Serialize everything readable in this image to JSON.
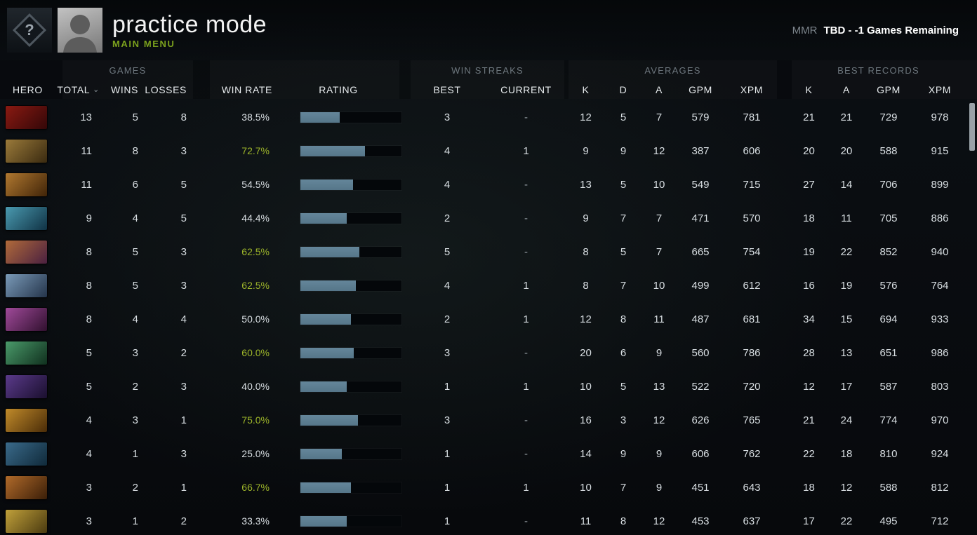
{
  "topbar": {
    "title": "practice mode",
    "subtitle": "MAIN MENU",
    "logo_glyph": "?",
    "mmr_label": "MMR",
    "mmr_value": "TBD - -1 Games Remaining"
  },
  "header": {
    "groups": {
      "games": "GAMES",
      "streaks": "WIN STREAKS",
      "averages": "AVERAGES",
      "records": "BEST RECORDS"
    },
    "cols": {
      "hero": "HERO",
      "total": "TOTAL",
      "wins": "WINS",
      "losses": "LOSSES",
      "win_rate": "WIN RATE",
      "rating": "RATING",
      "best": "BEST",
      "current": "CURRENT",
      "k": "K",
      "d": "D",
      "a": "A",
      "gpm": "GPM",
      "xpm": "XPM",
      "k2": "K",
      "a2": "A",
      "gpm2": "GPM",
      "xpm2": "XPM"
    },
    "sort_icon": "⌄"
  },
  "colors": {
    "accent_green": "#9db52a",
    "subtitle_green": "#7ca21d",
    "bar_fill": "#5b7d8e",
    "bar_track": "#04070a"
  },
  "rows": [
    {
      "total": "13",
      "wins": "5",
      "losses": "8",
      "win_rate": "38.5%",
      "rating_pct": 39,
      "best": "3",
      "current": "-",
      "avg_k": "12",
      "avg_d": "5",
      "avg_a": "7",
      "avg_gpm": "579",
      "avg_xpm": "781",
      "rec_k": "21",
      "rec_a": "21",
      "rec_gpm": "729",
      "rec_xpm": "978",
      "hero_colors": [
        "#8a1a12",
        "#330708"
      ]
    },
    {
      "total": "11",
      "wins": "8",
      "losses": "3",
      "win_rate": "72.7%",
      "rating_pct": 64,
      "best": "4",
      "current": "1",
      "avg_k": "9",
      "avg_d": "9",
      "avg_a": "12",
      "avg_gpm": "387",
      "avg_xpm": "606",
      "rec_k": "20",
      "rec_a": "20",
      "rec_gpm": "588",
      "rec_xpm": "915",
      "hero_colors": [
        "#9a7a3a",
        "#3a2a10"
      ]
    },
    {
      "total": "11",
      "wins": "6",
      "losses": "5",
      "win_rate": "54.5%",
      "rating_pct": 52,
      "best": "4",
      "current": "-",
      "avg_k": "13",
      "avg_d": "5",
      "avg_a": "10",
      "avg_gpm": "549",
      "avg_xpm": "715",
      "rec_k": "27",
      "rec_a": "14",
      "rec_gpm": "706",
      "rec_xpm": "899",
      "hero_colors": [
        "#b07830",
        "#402408"
      ]
    },
    {
      "total": "9",
      "wins": "4",
      "losses": "5",
      "win_rate": "44.4%",
      "rating_pct": 46,
      "best": "2",
      "current": "-",
      "avg_k": "9",
      "avg_d": "7",
      "avg_a": "7",
      "avg_gpm": "471",
      "avg_xpm": "570",
      "rec_k": "18",
      "rec_a": "11",
      "rec_gpm": "705",
      "rec_xpm": "886",
      "hero_colors": [
        "#4a9ab0",
        "#103244"
      ]
    },
    {
      "total": "8",
      "wins": "5",
      "losses": "3",
      "win_rate": "62.5%",
      "rating_pct": 58,
      "best": "5",
      "current": "-",
      "avg_k": "8",
      "avg_d": "5",
      "avg_a": "7",
      "avg_gpm": "665",
      "avg_xpm": "754",
      "rec_k": "19",
      "rec_a": "22",
      "rec_gpm": "852",
      "rec_xpm": "940",
      "hero_colors": [
        "#b06a3a",
        "#4a2040"
      ]
    },
    {
      "total": "8",
      "wins": "5",
      "losses": "3",
      "win_rate": "62.5%",
      "rating_pct": 55,
      "best": "4",
      "current": "1",
      "avg_k": "8",
      "avg_d": "7",
      "avg_a": "10",
      "avg_gpm": "499",
      "avg_xpm": "612",
      "rec_k": "16",
      "rec_a": "19",
      "rec_gpm": "576",
      "rec_xpm": "764",
      "hero_colors": [
        "#7a9ab8",
        "#24344a"
      ]
    },
    {
      "total": "8",
      "wins": "4",
      "losses": "4",
      "win_rate": "50.0%",
      "rating_pct": 50,
      "best": "2",
      "current": "1",
      "avg_k": "12",
      "avg_d": "8",
      "avg_a": "11",
      "avg_gpm": "487",
      "avg_xpm": "681",
      "rec_k": "34",
      "rec_a": "15",
      "rec_gpm": "694",
      "rec_xpm": "933",
      "hero_colors": [
        "#a04a9a",
        "#30102e"
      ]
    },
    {
      "total": "5",
      "wins": "3",
      "losses": "2",
      "win_rate": "60.0%",
      "rating_pct": 53,
      "best": "3",
      "current": "-",
      "avg_k": "20",
      "avg_d": "6",
      "avg_a": "9",
      "avg_gpm": "560",
      "avg_xpm": "786",
      "rec_k": "28",
      "rec_a": "13",
      "rec_gpm": "651",
      "rec_xpm": "986",
      "hero_colors": [
        "#4a9a6a",
        "#10301e"
      ]
    },
    {
      "total": "5",
      "wins": "2",
      "losses": "3",
      "win_rate": "40.0%",
      "rating_pct": 46,
      "best": "1",
      "current": "1",
      "avg_k": "10",
      "avg_d": "5",
      "avg_a": "13",
      "avg_gpm": "522",
      "avg_xpm": "720",
      "rec_k": "12",
      "rec_a": "17",
      "rec_gpm": "587",
      "rec_xpm": "803",
      "hero_colors": [
        "#5a3a8a",
        "#1a0f2e"
      ]
    },
    {
      "total": "4",
      "wins": "3",
      "losses": "1",
      "win_rate": "75.0%",
      "rating_pct": 57,
      "best": "3",
      "current": "-",
      "avg_k": "16",
      "avg_d": "3",
      "avg_a": "12",
      "avg_gpm": "626",
      "avg_xpm": "765",
      "rec_k": "21",
      "rec_a": "24",
      "rec_gpm": "774",
      "rec_xpm": "970",
      "hero_colors": [
        "#c08a2a",
        "#4a2c08"
      ]
    },
    {
      "total": "4",
      "wins": "1",
      "losses": "3",
      "win_rate": "25.0%",
      "rating_pct": 41,
      "best": "1",
      "current": "-",
      "avg_k": "14",
      "avg_d": "9",
      "avg_a": "9",
      "avg_gpm": "606",
      "avg_xpm": "762",
      "rec_k": "22",
      "rec_a": "18",
      "rec_gpm": "810",
      "rec_xpm": "924",
      "hero_colors": [
        "#3a6a8a",
        "#102a3a"
      ]
    },
    {
      "total": "3",
      "wins": "2",
      "losses": "1",
      "win_rate": "66.7%",
      "rating_pct": 50,
      "best": "1",
      "current": "1",
      "avg_k": "10",
      "avg_d": "7",
      "avg_a": "9",
      "avg_gpm": "451",
      "avg_xpm": "643",
      "rec_k": "18",
      "rec_a": "12",
      "rec_gpm": "588",
      "rec_xpm": "812",
      "hero_colors": [
        "#b06a2a",
        "#3a1e08"
      ]
    },
    {
      "total": "3",
      "wins": "1",
      "losses": "2",
      "win_rate": "33.3%",
      "rating_pct": 46,
      "best": "1",
      "current": "-",
      "avg_k": "11",
      "avg_d": "8",
      "avg_a": "12",
      "avg_gpm": "453",
      "avg_xpm": "637",
      "rec_k": "17",
      "rec_a": "22",
      "rec_gpm": "495",
      "rec_xpm": "712",
      "hero_colors": [
        "#c0a03a",
        "#4a3a10"
      ]
    }
  ]
}
